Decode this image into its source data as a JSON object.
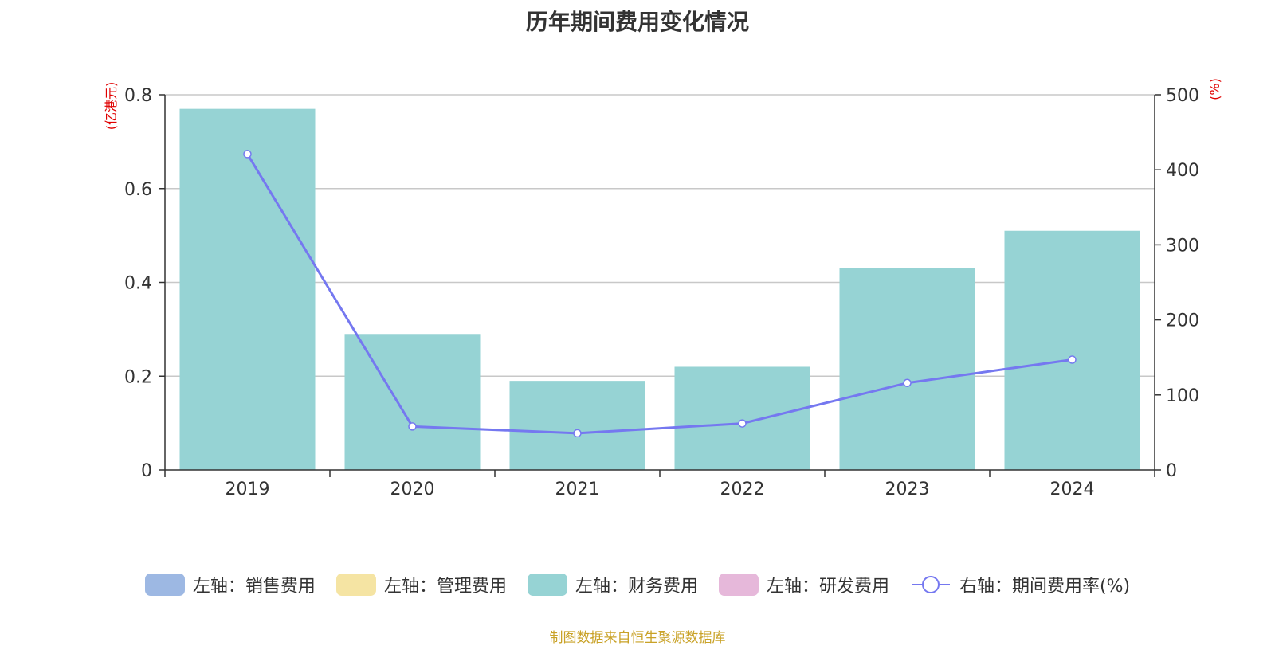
{
  "title": "历年期间费用变化情况",
  "chart_data": {
    "type": "bar",
    "title": "历年期间费用变化情况",
    "categories": [
      "2019",
      "2020",
      "2021",
      "2022",
      "2023",
      "2024"
    ],
    "series": [
      {
        "name": "左轴：财务费用",
        "type": "bar",
        "axis": "left",
        "color": "#96d3d4",
        "values": [
          0.77,
          0.29,
          0.19,
          0.22,
          0.43,
          0.51
        ]
      },
      {
        "name": "右轴：期间费用率(%)",
        "type": "line",
        "axis": "right",
        "color": "#7578f0",
        "values": [
          421,
          58,
          49,
          62,
          116,
          147
        ]
      }
    ],
    "left_axis": {
      "label": "(亿港元)",
      "min": 0,
      "max": 0.8,
      "ticks": [
        "0",
        "0.2",
        "0.4",
        "0.6",
        "0.8"
      ]
    },
    "right_axis": {
      "label": "(%)",
      "min": 0,
      "max": 500,
      "ticks": [
        "0",
        "100",
        "200",
        "300",
        "400",
        "500"
      ]
    },
    "grid": true,
    "legend_position": "bottom"
  },
  "legend": [
    {
      "label": "左轴：销售费用",
      "color": "#9db8e3",
      "kind": "bar"
    },
    {
      "label": "左轴：管理费用",
      "color": "#f5e4a3",
      "kind": "bar"
    },
    {
      "label": "左轴：财务费用",
      "color": "#96d3d4",
      "kind": "bar"
    },
    {
      "label": "左轴：研发费用",
      "color": "#e6b8da",
      "kind": "bar"
    },
    {
      "label": "右轴：期间费用率(%)",
      "color": "#7578f0",
      "kind": "line"
    }
  ],
  "source": "制图数据来自恒生聚源数据库"
}
